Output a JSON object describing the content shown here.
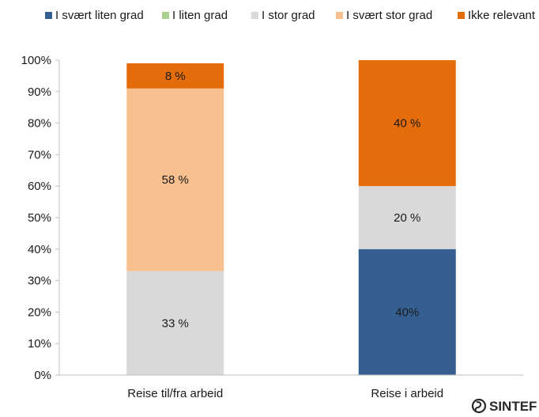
{
  "chart_data": {
    "type": "bar",
    "stacked": true,
    "percent": true,
    "categories": [
      "Reise til/fra arbeid",
      "Reise i arbeid"
    ],
    "series": [
      {
        "name": "I svært liten grad",
        "color": "#355f91",
        "values": [
          0,
          40
        ],
        "labels": [
          "",
          "40%"
        ]
      },
      {
        "name": "I liten grad",
        "color": "#a9d08e",
        "values": [
          0,
          0
        ],
        "labels": [
          "",
          ""
        ]
      },
      {
        "name": "I stor grad",
        "color": "#d9d9d9",
        "values": [
          33,
          20
        ],
        "labels": [
          "33 %",
          "20 %"
        ]
      },
      {
        "name": "I svært stor grad",
        "color": "#f8bf8f",
        "values": [
          58,
          0
        ],
        "labels": [
          "58 %",
          ""
        ]
      },
      {
        "name": "Ikke relevant",
        "color": "#e46c0a",
        "values": [
          8,
          40
        ],
        "labels": [
          "8 %",
          "40 %"
        ]
      }
    ],
    "ylim": [
      0,
      100
    ],
    "yticks": [
      "0%",
      "10%",
      "20%",
      "30%",
      "40%",
      "50%",
      "60%",
      "70%",
      "80%",
      "90%",
      "100%"
    ],
    "legend_position": "top",
    "grid": false
  },
  "logo": {
    "text": "SINTEF",
    "icon": "sintef-logo-icon"
  }
}
